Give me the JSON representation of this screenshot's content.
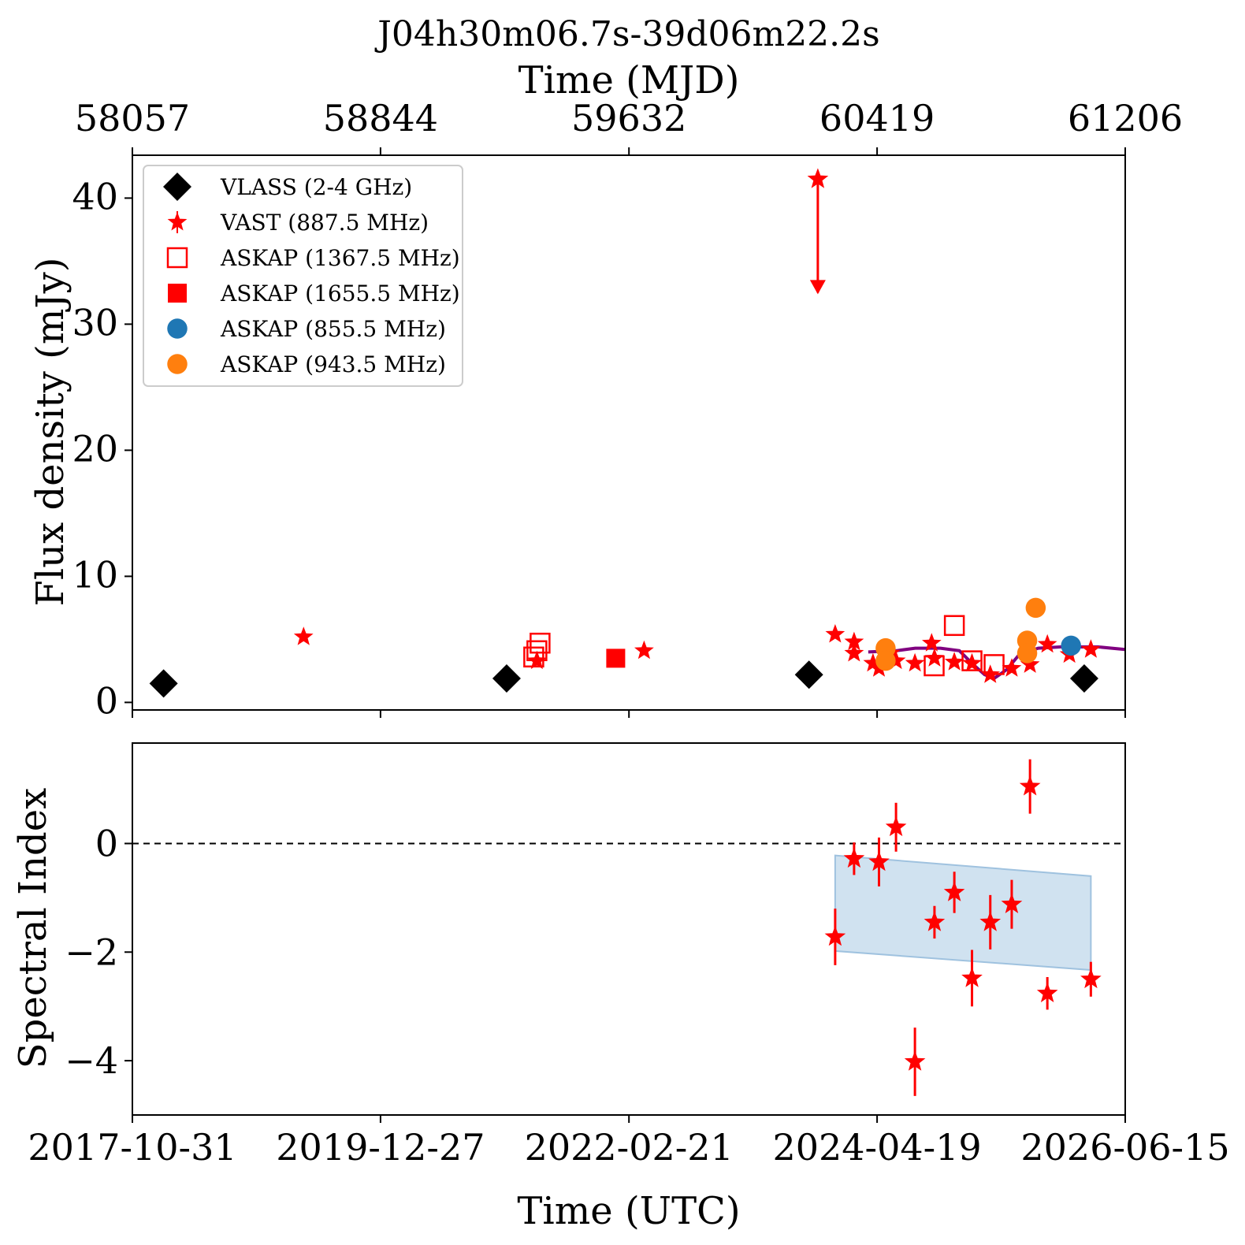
{
  "chart_data": [
    {
      "type": "scatter",
      "panel": "flux",
      "title": "J04h30m06.7s-39d06m22.2s",
      "xlabel_top": "Time (MJD)",
      "ylabel": "Flux density (mJy)",
      "ylim": [
        -0.6,
        43.4
      ],
      "xlim_mjd": [
        58057,
        61206
      ],
      "yticks": [
        0,
        10,
        20,
        30,
        40
      ],
      "mjd_ticks": [
        "58057",
        "58844",
        "59632",
        "60419",
        "61206"
      ],
      "legend_position": "upper-left",
      "series": [
        {
          "name": "VLASS (2-4 GHz)",
          "marker": "diamond",
          "color": "#000000",
          "filled": true,
          "points": [
            [
              58156,
              1.5
            ],
            [
              59244,
              1.9
            ],
            [
              60203,
              2.2
            ],
            [
              61076,
              1.9
            ]
          ]
        },
        {
          "name": "VAST (887.5 MHz)",
          "marker": "star",
          "color": "#ff0000",
          "filled": true,
          "points": [
            [
              58600,
              5.2
            ],
            [
              59340,
              3.3
            ],
            [
              59680,
              4.1
            ],
            [
              60286,
              5.4
            ],
            [
              60346,
              4.8
            ],
            [
              60346,
              3.9
            ],
            [
              60406,
              3.1
            ],
            [
              60461,
              3.9
            ],
            [
              60425,
              2.7
            ],
            [
              60479,
              3.3
            ],
            [
              60539,
              3.1
            ],
            [
              60592,
              4.7
            ],
            [
              60601,
              3.5
            ],
            [
              60664,
              3.2
            ],
            [
              60720,
              3.1
            ],
            [
              60778,
              2.2
            ],
            [
              60846,
              2.7
            ],
            [
              60904,
              3.0
            ],
            [
              60959,
              4.6
            ],
            [
              61029,
              3.8
            ],
            [
              61097,
              4.2
            ]
          ]
        },
        {
          "name": "ASKAP (1367.5 MHz)",
          "marker": "square",
          "color": "#ff0000",
          "filled": false,
          "points": [
            [
              59330,
              3.6
            ],
            [
              59340,
              4.1
            ],
            [
              59350,
              4.7
            ],
            [
              60600,
              2.9
            ],
            [
              60664,
              6.1
            ],
            [
              60720,
              3.3
            ],
            [
              60790,
              3.0
            ]
          ]
        },
        {
          "name": "ASKAP (1655.5 MHz)",
          "marker": "square",
          "color": "#ff0000",
          "filled": true,
          "points": [
            [
              59590,
              3.5
            ]
          ]
        },
        {
          "name": "ASKAP (855.5 MHz)",
          "marker": "circle",
          "color": "#1f77b4",
          "filled": true,
          "points": [
            [
              61034,
              4.5
            ]
          ]
        },
        {
          "name": "ASKAP (943.5 MHz)",
          "marker": "circle",
          "color": "#ff7f0e",
          "filled": true,
          "points": [
            [
              60446,
              4.3
            ],
            [
              60446,
              3.3
            ],
            [
              60895,
              4.9
            ],
            [
              60895,
              3.9
            ],
            [
              60922,
              7.5
            ]
          ]
        }
      ],
      "upper_limit": {
        "series": "VAST (887.5 MHz)",
        "x": 60231,
        "y": 41.5,
        "arrow_to": 32.5,
        "color": "#ff0000"
      },
      "model_curve": {
        "color": "#800080",
        "points": [
          [
            60391,
            4.0
          ],
          [
            60480,
            4.1
          ],
          [
            60540,
            4.3
          ],
          [
            60620,
            4.3
          ],
          [
            60680,
            4.1
          ],
          [
            60720,
            3.1
          ],
          [
            60760,
            2.2
          ],
          [
            60790,
            1.9
          ],
          [
            60830,
            2.6
          ],
          [
            60870,
            3.8
          ],
          [
            60930,
            4.3
          ],
          [
            61000,
            4.4
          ],
          [
            61120,
            4.4
          ],
          [
            61206,
            4.2
          ]
        ]
      }
    },
    {
      "type": "scatter",
      "panel": "spectral_index",
      "ylabel": "Spectral Index",
      "xlabel": "Time (UTC)",
      "ylim": [
        -5.0,
        1.85
      ],
      "yticks": [
        "0",
        "−2",
        "−4"
      ],
      "date_ticks": [
        "2017-10-31",
        "2019-12-27",
        "2022-02-21",
        "2024-04-19",
        "2026-06-15"
      ],
      "reference_line": 0,
      "band": {
        "color": "#bcd6ea",
        "x": [
          60286,
          61097
        ],
        "upper": [
          -0.22,
          -0.6
        ],
        "lower": [
          -1.98,
          -2.33
        ]
      },
      "series": [
        {
          "marker": "star",
          "color": "#ff0000",
          "points": [
            {
              "x": 60286,
              "y": -1.72,
              "err": 0.52
            },
            {
              "x": 60346,
              "y": -0.28,
              "err": 0.3
            },
            {
              "x": 60425,
              "y": -0.34,
              "err": 0.45
            },
            {
              "x": 60479,
              "y": 0.3,
              "err": 0.45
            },
            {
              "x": 60539,
              "y": -4.02,
              "err": 0.63
            },
            {
              "x": 60601,
              "y": -1.45,
              "err": 0.3
            },
            {
              "x": 60664,
              "y": -0.9,
              "err": 0.38
            },
            {
              "x": 60720,
              "y": -2.48,
              "err": 0.52
            },
            {
              "x": 60778,
              "y": -1.45,
              "err": 0.5
            },
            {
              "x": 60846,
              "y": -1.12,
              "err": 0.45
            },
            {
              "x": 60904,
              "y": 1.05,
              "err": 0.5
            },
            {
              "x": 60959,
              "y": -2.76,
              "err": 0.3
            },
            {
              "x": 61097,
              "y": -2.5,
              "err": 0.32
            }
          ]
        }
      ]
    }
  ]
}
